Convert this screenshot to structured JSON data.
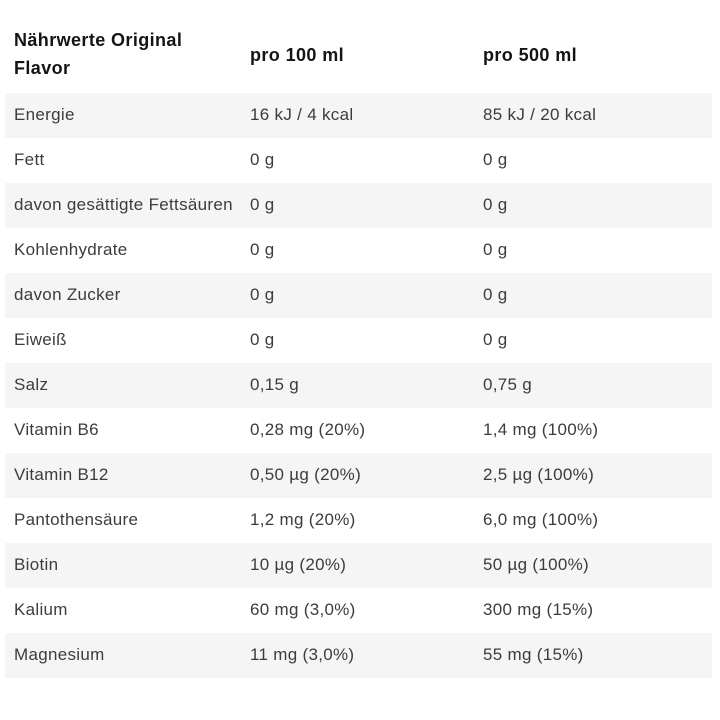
{
  "table": {
    "header": {
      "label": "Nährwerte Original Flavor",
      "col_per_100": "pro 100 ml",
      "col_per_500": "pro 500 ml"
    },
    "rows": [
      {
        "label": "Energie",
        "per100": "16 kJ / 4 kcal",
        "per500": "85 kJ / 20 kcal"
      },
      {
        "label": "Fett",
        "per100": "0 g",
        "per500": "0 g"
      },
      {
        "label": "davon gesättigte Fettsäuren",
        "per100": "0 g",
        "per500": "0 g"
      },
      {
        "label": "Kohlenhydrate",
        "per100": "0 g",
        "per500": "0 g"
      },
      {
        "label": "davon Zucker",
        "per100": "0 g",
        "per500": "0 g"
      },
      {
        "label": "Eiweiß",
        "per100": "0 g",
        "per500": "0 g"
      },
      {
        "label": "Salz",
        "per100": "0,15 g",
        "per500": "0,75 g"
      },
      {
        "label": "Vitamin B6",
        "per100": "0,28 mg (20%)",
        "per500": "1,4 mg (100%)"
      },
      {
        "label": "Vitamin B12",
        "per100": "0,50 µg (20%)",
        "per500": "2,5 µg (100%)"
      },
      {
        "label": "Pantothensäure",
        "per100": "1,2 mg (20%)",
        "per500": "6,0 mg (100%)"
      },
      {
        "label": "Biotin",
        "per100": "10 µg (20%)",
        "per500": "50 µg (100%)"
      },
      {
        "label": "Kalium",
        "per100": "60 mg (3,0%)",
        "per500": "300 mg (15%)"
      },
      {
        "label": "Magnesium",
        "per100": "11 mg (3,0%)",
        "per500": "55 mg (15%)"
      }
    ],
    "colors": {
      "shaded_row_bg": "#f5f5f5",
      "text": "#3c3c3c",
      "header_text": "#141414"
    }
  },
  "chart_data": {
    "type": "table",
    "title": "Nährwerte Original Flavor",
    "columns": [
      "Nährwerte Original Flavor",
      "pro 100 ml",
      "pro 500 ml"
    ],
    "rows": [
      [
        "Energie",
        "16 kJ / 4 kcal",
        "85 kJ / 20 kcal"
      ],
      [
        "Fett",
        "0 g",
        "0 g"
      ],
      [
        "davon gesättigte Fettsäuren",
        "0 g",
        "0 g"
      ],
      [
        "Kohlenhydrate",
        "0 g",
        "0 g"
      ],
      [
        "davon Zucker",
        "0 g",
        "0 g"
      ],
      [
        "Eiweiß",
        "0 g",
        "0 g"
      ],
      [
        "Salz",
        "0,15 g",
        "0,75 g"
      ],
      [
        "Vitamin B6",
        "0,28 mg (20%)",
        "1,4 mg (100%)"
      ],
      [
        "Vitamin B12",
        "0,50 µg (20%)",
        "2,5 µg (100%)"
      ],
      [
        "Pantothensäure",
        "1,2 mg (20%)",
        "6,0 mg (100%)"
      ],
      [
        "Biotin",
        "10 µg (20%)",
        "50 µg (100%)"
      ],
      [
        "Kalium",
        "60 mg (3,0%)",
        "300 mg (15%)"
      ],
      [
        "Magnesium",
        "11 mg (3,0%)",
        "55 mg (15%)"
      ]
    ]
  }
}
